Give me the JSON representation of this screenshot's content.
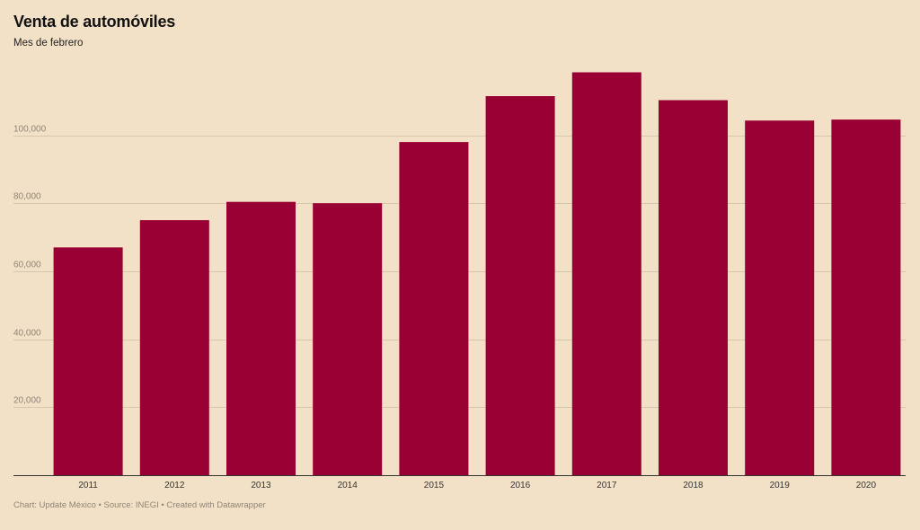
{
  "header": {
    "title": "Venta de automóviles",
    "subtitle": "Mes de febrero"
  },
  "footer": {
    "text": "Chart: Update México • Source: INEGI • Created with Datawrapper"
  },
  "colors": {
    "background": "#f2e1c6",
    "bar": "#990033",
    "grid": "#d6c6ae"
  },
  "chart_data": {
    "type": "bar",
    "categories": [
      "2011",
      "2012",
      "2013",
      "2014",
      "2015",
      "2016",
      "2017",
      "2018",
      "2019",
      "2020"
    ],
    "values": [
      67000,
      75000,
      80400,
      80000,
      98000,
      111500,
      118500,
      110300,
      104300,
      104600
    ],
    "ylim": [
      0,
      120000
    ],
    "yticks": [
      20000,
      40000,
      60000,
      80000,
      100000
    ],
    "ytick_labels": [
      "20,000",
      "40,000",
      "60,000",
      "80,000",
      "100,000"
    ],
    "grid": true,
    "legend": "none"
  }
}
